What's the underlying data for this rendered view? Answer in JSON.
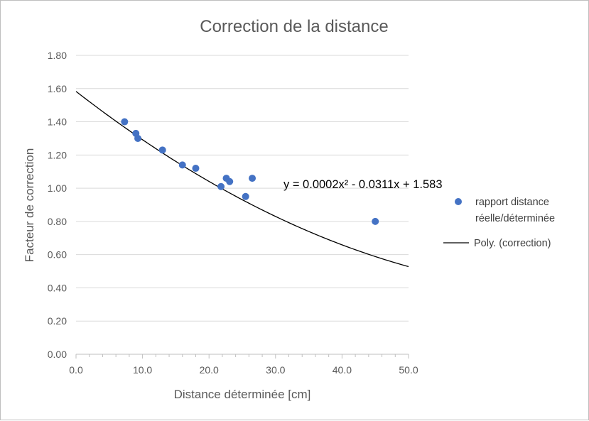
{
  "chart_data": {
    "type": "scatter",
    "title": "Correction de la distance",
    "xlabel": "Distance déterminée [cm]",
    "ylabel": "Facteur de correction",
    "xlim": [
      0,
      50
    ],
    "ylim": [
      0,
      1.8
    ],
    "x_ticks": [
      "0.0",
      "10.0",
      "20.0",
      "30.0",
      "40.0",
      "50.0"
    ],
    "y_ticks": [
      "0.00",
      "0.20",
      "0.40",
      "0.60",
      "0.80",
      "1.00",
      "1.20",
      "1.40",
      "1.60",
      "1.80"
    ],
    "grid": "horizontal",
    "legend_position": "right",
    "series": [
      {
        "name": "rapport distance réelle/déterminée",
        "legend_lines": [
          "rapport distance",
          "réelle/déterminée"
        ],
        "type": "scatter",
        "color": "#4472c4",
        "points": [
          {
            "x": 7.3,
            "y": 1.4
          },
          {
            "x": 9.0,
            "y": 1.33
          },
          {
            "x": 9.3,
            "y": 1.3
          },
          {
            "x": 13.0,
            "y": 1.23
          },
          {
            "x": 16.0,
            "y": 1.14
          },
          {
            "x": 18.0,
            "y": 1.12
          },
          {
            "x": 21.8,
            "y": 1.01
          },
          {
            "x": 22.6,
            "y": 1.06
          },
          {
            "x": 23.1,
            "y": 1.04
          },
          {
            "x": 25.5,
            "y": 0.95
          },
          {
            "x": 26.5,
            "y": 1.06
          },
          {
            "x": 45.0,
            "y": 0.8
          }
        ]
      },
      {
        "name": "Poly. (correction)",
        "type": "trendline",
        "color": "#000000",
        "coefficients": {
          "a": 0.0002,
          "b": -0.0311,
          "c": 1.583
        },
        "equation": "y = 0.0002x² - 0.0311x + 1.583"
      }
    ]
  }
}
